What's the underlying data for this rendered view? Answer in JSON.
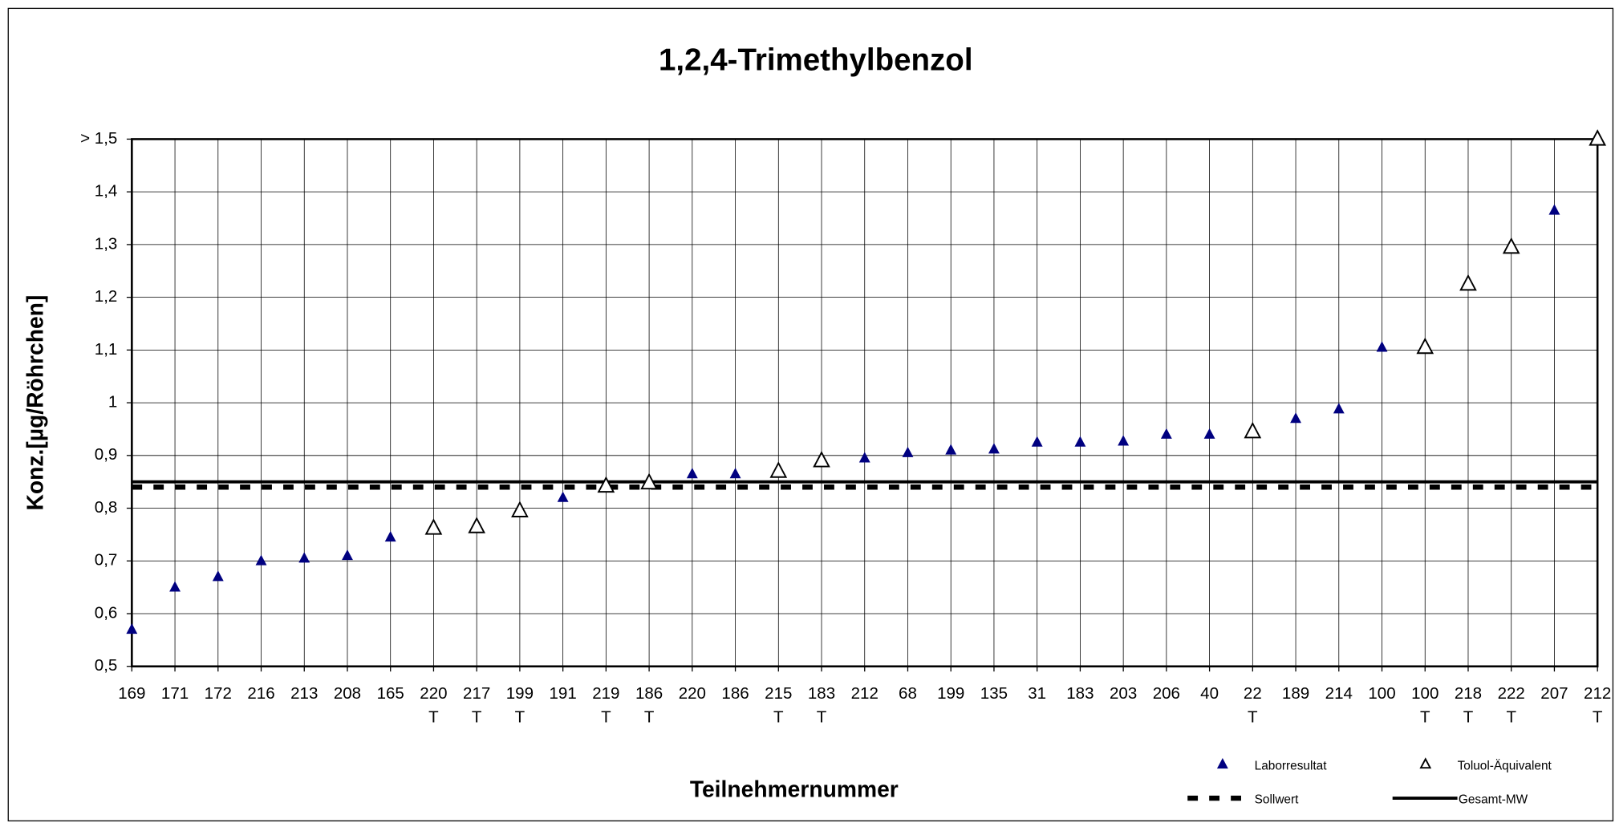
{
  "chart_data": {
    "type": "scatter",
    "title": "1,2,4-Trimethylbenzol",
    "x_label": "Teilnehmernummer",
    "y_label": "Konz.[µg/Röhrchen]",
    "categories": [
      "169",
      "171",
      "172",
      "216",
      "213",
      "208",
      "165",
      "220",
      "217",
      "199",
      "191",
      "219",
      "186",
      "220",
      "186",
      "215",
      "183",
      "212",
      "68",
      "199",
      "135",
      "31",
      "183",
      "203",
      "206",
      "40",
      "22",
      "189",
      "214",
      "100",
      "100",
      "218",
      "222",
      "207",
      "212"
    ],
    "category_notes": [
      null,
      null,
      null,
      null,
      null,
      null,
      null,
      "T",
      "T",
      "T",
      null,
      "T",
      "T",
      null,
      null,
      "T",
      "T",
      null,
      null,
      null,
      null,
      null,
      null,
      null,
      null,
      null,
      "T",
      null,
      null,
      null,
      "T",
      "T",
      "T",
      null,
      "T"
    ],
    "series": [
      {
        "name": "Laborresultat",
        "color": "#000080",
        "marker": "filled-triangle",
        "values": [
          0.57,
          0.65,
          0.67,
          0.7,
          0.705,
          0.71,
          0.745,
          null,
          null,
          null,
          0.82,
          null,
          null,
          0.865,
          0.865,
          null,
          null,
          0.895,
          0.905,
          0.91,
          0.912,
          0.925,
          0.925,
          0.927,
          0.94,
          0.94,
          null,
          0.97,
          0.988,
          1.105,
          null,
          null,
          null,
          1.365,
          null
        ]
      },
      {
        "name": "Toluol-Äquivalent",
        "color": "#000000",
        "marker": "open-triangle",
        "values": [
          null,
          null,
          null,
          null,
          null,
          null,
          null,
          0.762,
          0.765,
          0.795,
          null,
          0.842,
          0.848,
          null,
          null,
          0.87,
          0.89,
          null,
          null,
          null,
          null,
          null,
          null,
          null,
          null,
          null,
          0.945,
          null,
          null,
          null,
          1.105,
          1.225,
          1.295,
          null,
          1.5
        ]
      }
    ],
    "reference_lines": [
      {
        "name": "Sollwert",
        "value": 0.84,
        "style": "dashed",
        "color": "#000000"
      },
      {
        "name": "Gesamt-MW",
        "value": 0.85,
        "style": "solid",
        "color": "#000000"
      }
    ],
    "ylim": [
      0.5,
      1.5
    ],
    "yticks": [
      {
        "value": 0.5,
        "label": "0,5"
      },
      {
        "value": 0.6,
        "label": "0,6"
      },
      {
        "value": 0.7,
        "label": "0,7"
      },
      {
        "value": 0.8,
        "label": "0,8"
      },
      {
        "value": 0.9,
        "label": "0,9"
      },
      1,
      {
        "value": 1.1,
        "label": "1,1"
      },
      {
        "value": 1.2,
        "label": "1,2"
      },
      {
        "value": 1.3,
        "label": "1,3"
      },
      {
        "value": 1.4,
        "label": "1,4"
      },
      {
        "value": 1.5,
        "label": "> 1,5"
      }
    ],
    "grid": true
  }
}
